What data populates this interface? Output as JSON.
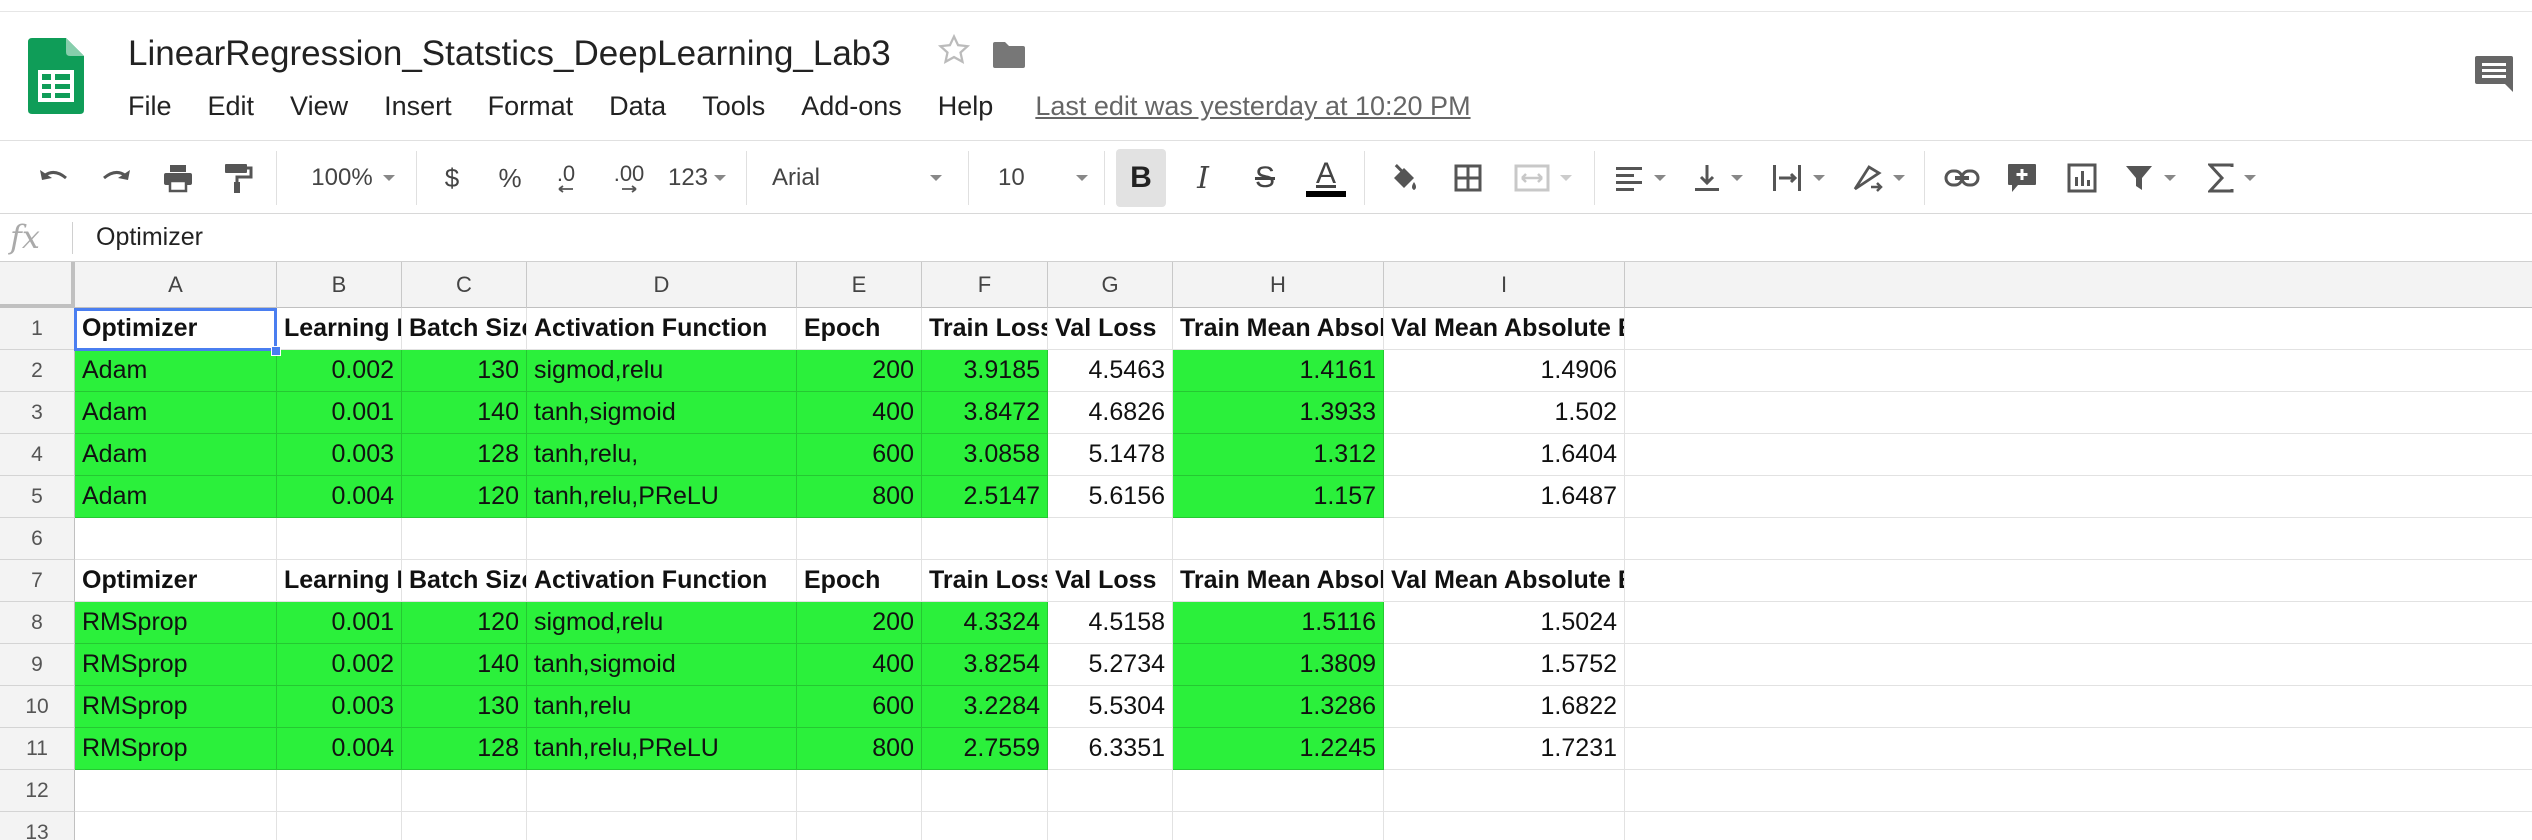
{
  "app": {
    "doc_title": "LinearRegression_Statstics_DeepLearning_Lab3",
    "last_edit": "Last edit was yesterday at 10:20 PM",
    "brand_color": "#0f9d58"
  },
  "menu": [
    "File",
    "Edit",
    "View",
    "Insert",
    "Format",
    "Data",
    "Tools",
    "Add-ons",
    "Help"
  ],
  "toolbar": {
    "zoom": "100%",
    "currency": "$",
    "percent": "%",
    "decrease_decimal": ".0",
    "increase_decimal": ".00",
    "more_formats": "123",
    "font": "Arial",
    "font_size": "10",
    "bold": "B",
    "italic": "I",
    "strikethrough": "S",
    "text_color": "A"
  },
  "formula_bar": {
    "fx": "fx",
    "value": "Optimizer"
  },
  "columns": [
    "A",
    "B",
    "C",
    "D",
    "E",
    "F",
    "G",
    "H",
    "I"
  ],
  "rows": [
    "1",
    "2",
    "3",
    "4",
    "5",
    "6",
    "7",
    "8",
    "9",
    "10",
    "11",
    "12",
    "13"
  ],
  "sheet": {
    "header": [
      "Optimizer",
      "Learning Rate",
      "Batch Size",
      "Activation Function",
      "Epoch",
      "Train Loss",
      "Val Loss",
      "Train Mean Absolute Error",
      "Val Mean Absolute Error"
    ],
    "adam_rows": [
      [
        "Adam",
        "0.002",
        "130",
        "sigmod,relu",
        "200",
        "3.9185",
        "4.5463",
        "1.4161",
        "1.4906"
      ],
      [
        "Adam",
        "0.001",
        "140",
        "tanh,sigmoid",
        "400",
        "3.8472",
        "4.6826",
        "1.3933",
        "1.502"
      ],
      [
        "Adam",
        "0.003",
        "128",
        "tanh,relu,",
        "600",
        "3.0858",
        "5.1478",
        "1.312",
        "1.6404"
      ],
      [
        "Adam",
        "0.004",
        "120",
        "tanh,relu,PReLU",
        "800",
        "2.5147",
        "5.6156",
        "1.157",
        "1.6487"
      ]
    ],
    "rmsprop_rows": [
      [
        "RMSprop",
        "0.001",
        "120",
        "sigmod,relu",
        "200",
        "4.3324",
        "4.5158",
        "1.5116",
        "1.5024"
      ],
      [
        "RMSprop",
        "0.002",
        "140",
        "tanh,sigmoid",
        "400",
        "3.8254",
        "5.2734",
        "1.3809",
        "1.5752"
      ],
      [
        "RMSprop",
        "0.003",
        "130",
        "tanh,relu",
        "600",
        "3.2284",
        "5.5304",
        "1.3286",
        "1.6822"
      ],
      [
        "RMSprop",
        "0.004",
        "128",
        "tanh,relu,PReLU",
        "800",
        "2.7559",
        "6.3351",
        "1.2245",
        "1.7231"
      ]
    ],
    "highlight_color": "#2bf03b",
    "selected_cell": "A1"
  }
}
